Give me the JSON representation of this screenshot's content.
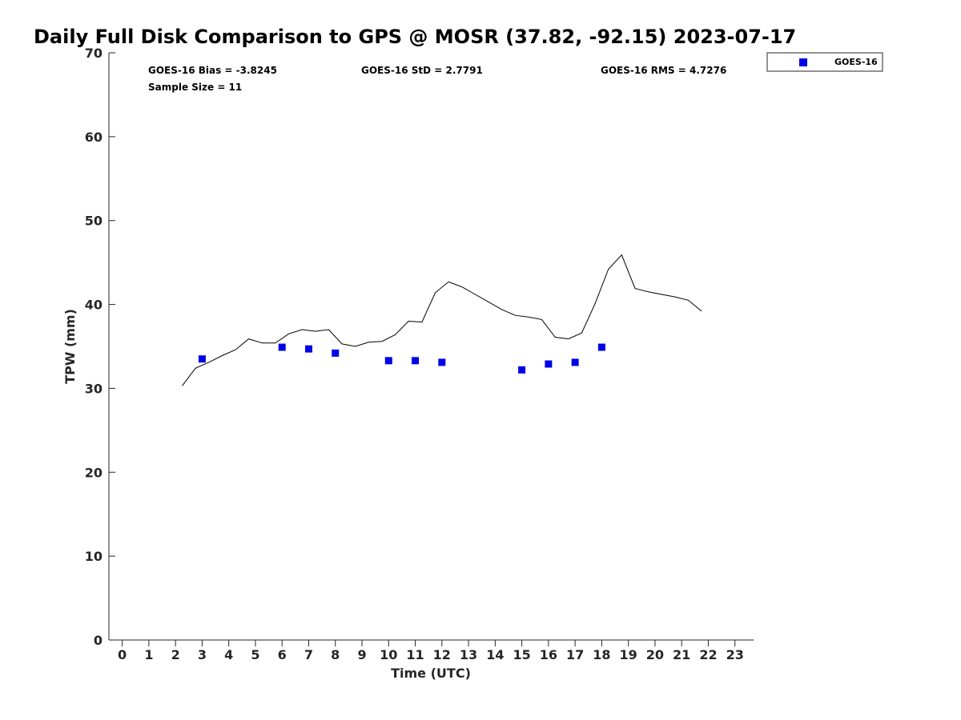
{
  "chart_data": {
    "type": "scatter",
    "title": "Daily Full Disk Comparison to GPS @ MOSR (37.82, -92.15) 2023-07-17",
    "xlabel": "Time (UTC)",
    "ylabel": "TPW (mm)",
    "xlim": [
      -0.5,
      23.7
    ],
    "ylim": [
      0,
      70
    ],
    "x_ticks": [
      0,
      1,
      2,
      3,
      4,
      5,
      6,
      7,
      8,
      9,
      10,
      11,
      12,
      13,
      14,
      15,
      16,
      17,
      18,
      19,
      20,
      21,
      22,
      23
    ],
    "y_ticks": [
      0,
      10,
      20,
      30,
      40,
      50,
      60,
      70
    ],
    "grid": false,
    "legend_position": "top-right",
    "stats": {
      "bias": "GOES-16 Bias = -3.8245",
      "std": "GOES-16 StD = 2.7791",
      "rms": "GOES-16 RMS = 4.7276",
      "sample_size": "Sample Size = 11"
    },
    "series": [
      {
        "name": "GOES-16",
        "type": "scatter",
        "marker": "square",
        "color": "#0000e6",
        "x": [
          3,
          6,
          7,
          8,
          10,
          11,
          12,
          15,
          16,
          17,
          18
        ],
        "y": [
          33.5,
          34.9,
          34.7,
          34.2,
          33.3,
          33.3,
          33.1,
          32.2,
          32.9,
          33.1,
          34.9
        ]
      },
      {
        "type": "line",
        "color": "#000000",
        "x": [
          2.25,
          2.75,
          3.25,
          3.75,
          4.25,
          4.75,
          5.25,
          5.75,
          6.25,
          6.75,
          7.25,
          7.75,
          8.25,
          8.75,
          9.25,
          9.75,
          10.25,
          10.75,
          11.25,
          11.75,
          12.25,
          12.75,
          13.25,
          13.75,
          14.25,
          14.75,
          15.25,
          15.75,
          16.25,
          16.75,
          17.25,
          17.75,
          18.25,
          18.75,
          19.25,
          19.75,
          20.25,
          20.75,
          21.25,
          21.75
        ],
        "y": [
          30.3,
          32.4,
          33.1,
          33.9,
          34.6,
          35.9,
          35.4,
          35.4,
          36.5,
          37.0,
          36.8,
          37.0,
          35.3,
          35.0,
          35.5,
          35.6,
          36.4,
          38.0,
          37.9,
          41.4,
          42.7,
          42.1,
          41.2,
          40.3,
          39.4,
          38.7,
          38.5,
          38.2,
          36.1,
          35.9,
          36.6,
          40.1,
          44.2,
          45.9,
          41.9,
          41.5,
          41.2,
          40.9,
          40.5,
          39.2
        ]
      }
    ]
  }
}
